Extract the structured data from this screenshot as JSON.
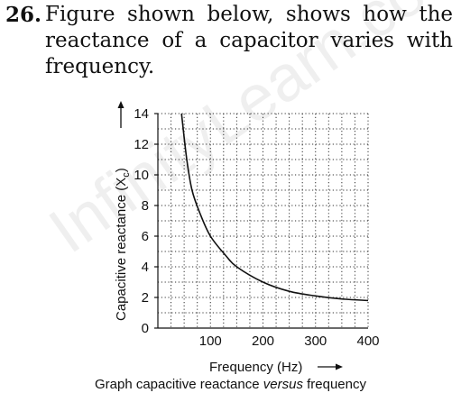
{
  "question": {
    "number": "26.",
    "text": "Figure shown below, shows how the reactance of a capacitor varies with frequency."
  },
  "watermark": "InfinityLearn.com",
  "caption": {
    "before": "Graph capacitive reactance ",
    "italic": "versus",
    "after": " frequency"
  },
  "chart_data": {
    "type": "line",
    "title": "",
    "xlabel": "Frequency (Hz)",
    "ylabel": "Capacitive reactance (X",
    "ylabel_sub": "c",
    "ylabel_end": ")",
    "xlim": [
      0,
      400
    ],
    "ylim": [
      0,
      14
    ],
    "xticks": [
      "100",
      "200",
      "300",
      "400"
    ],
    "xtick_values": [
      100,
      200,
      300,
      400
    ],
    "yticks": [
      "0",
      "2",
      "4",
      "6",
      "8",
      "10",
      "12",
      "14"
    ],
    "ytick_values": [
      0,
      2,
      4,
      6,
      8,
      10,
      12,
      14
    ],
    "grid": true,
    "grid_style": "dotted",
    "series": [
      {
        "x": [
          45,
          55,
          65,
          80,
          100,
          130,
          150,
          200,
          250,
          300,
          350,
          400
        ],
        "y": [
          14,
          11,
          9,
          7.5,
          6,
          4.7,
          4,
          3.0,
          2.4,
          2.1,
          1.9,
          1.8
        ]
      }
    ]
  }
}
